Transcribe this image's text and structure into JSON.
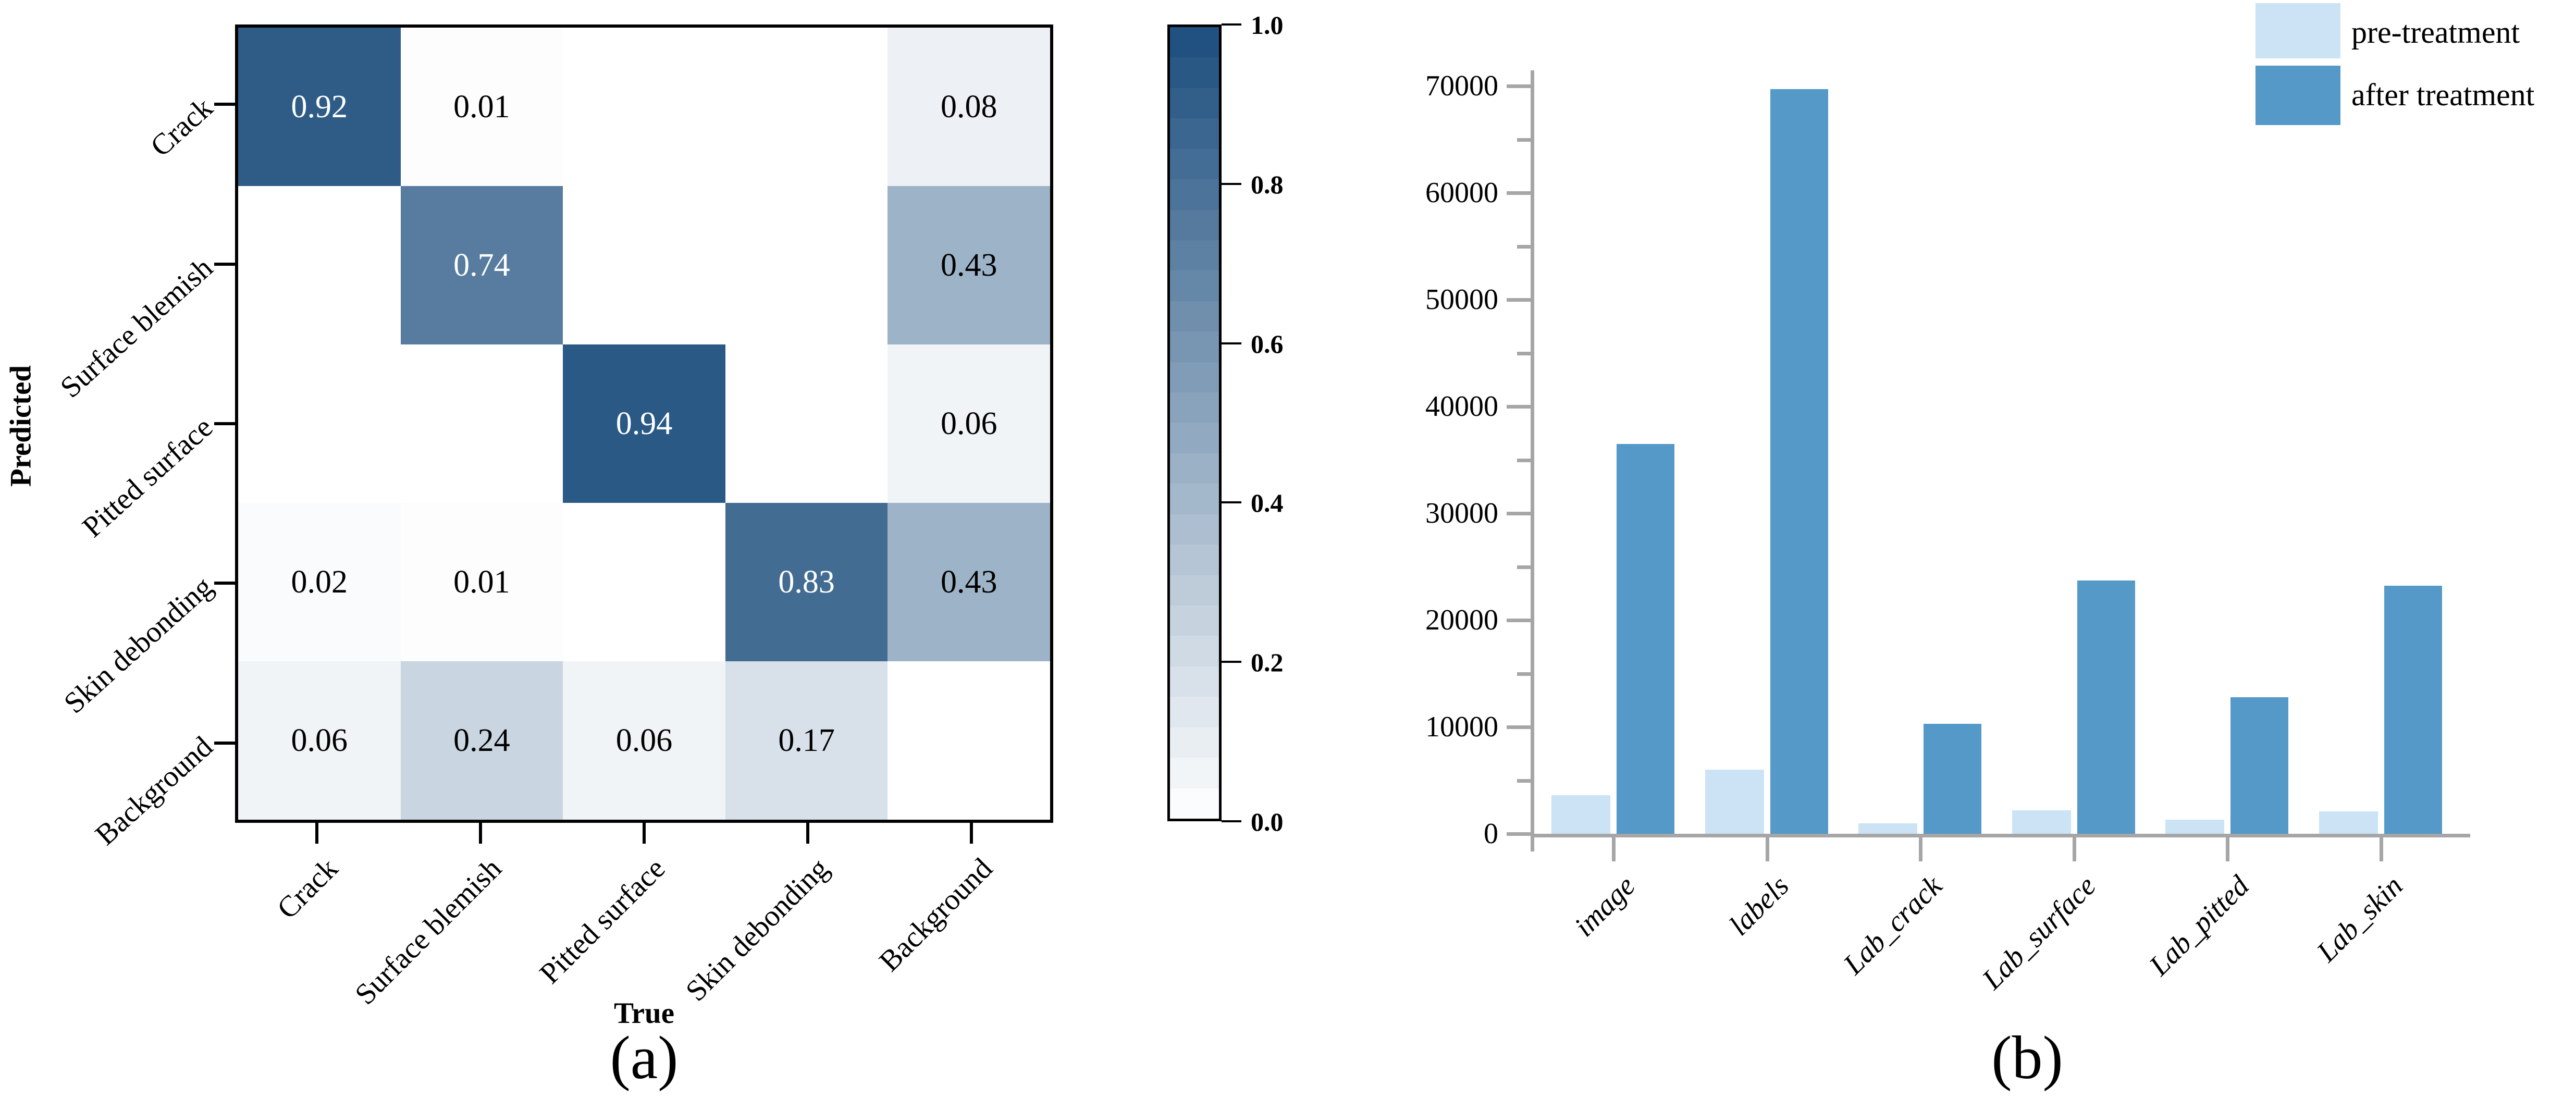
{
  "figure": {
    "panel_a_caption": "(a)",
    "panel_b_caption": "(b)",
    "heatmap_xlabel": "True",
    "heatmap_ylabel": "Predicted",
    "legend": {
      "pre_label": "pre-treatment",
      "after_label": "after treatment",
      "pre_color": "#cbe3f5",
      "after_color": "#5499c7"
    }
  },
  "chart_data": [
    {
      "type": "heatmap",
      "panel": "(a)",
      "title": "",
      "xlabel": "True",
      "ylabel": "Predicted",
      "x_categories": [
        "Crack",
        "Surface blemish",
        "Pitted surface",
        "Skin debonding",
        "Background"
      ],
      "y_categories": [
        "Crack",
        "Surface blemish",
        "Pitted surface",
        "Skin debonding",
        "Background"
      ],
      "rows": [
        [
          0.92,
          0.01,
          null,
          null,
          0.08
        ],
        [
          null,
          0.74,
          null,
          null,
          0.43
        ],
        [
          null,
          null,
          0.94,
          null,
          0.06
        ],
        [
          0.02,
          0.01,
          null,
          0.83,
          0.43
        ],
        [
          0.06,
          0.24,
          0.06,
          0.17,
          null
        ]
      ],
      "value_format": "2dp",
      "colormap": {
        "low": "#ffffff",
        "high": "#1c4e7d"
      },
      "colorbar": {
        "vmin": 0.0,
        "vmax": 1.0,
        "tick_labels": [
          "1.0",
          "0.8",
          "0.6",
          "0.4",
          "0.2",
          "0.0"
        ],
        "bands": 26
      },
      "grid": false
    },
    {
      "type": "bar",
      "panel": "(b)",
      "title": "",
      "xlabel": "",
      "ylabel": "",
      "categories": [
        "image",
        "labels",
        "Lab_crack",
        "Lab_surface",
        "Lab_pitted",
        "Lab_skin"
      ],
      "series": [
        {
          "name": "pre-treatment",
          "color": "#cbe3f5",
          "values": [
            3600,
            6000,
            1000,
            2200,
            1300,
            2100
          ]
        },
        {
          "name": "after treatment",
          "color": "#5499c7",
          "values": [
            36500,
            69700,
            10300,
            23700,
            12800,
            23200
          ]
        }
      ],
      "ylim": [
        0,
        70000
      ],
      "yticks": [
        0,
        10000,
        20000,
        30000,
        40000,
        50000,
        60000,
        70000
      ],
      "minor_ytick_step": 5000,
      "grid": false,
      "legend_position": "top-right",
      "axis_color": "#a6a6a6"
    }
  ]
}
